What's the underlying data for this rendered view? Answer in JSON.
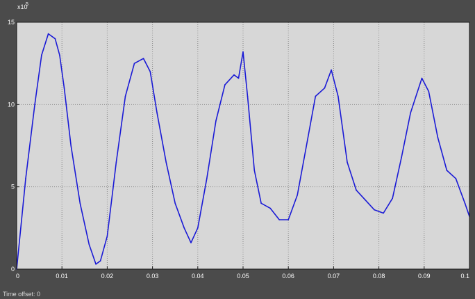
{
  "chart_data": {
    "type": "line",
    "title": "",
    "xlabel": "",
    "ylabel": "",
    "xlim": [
      0,
      0.1
    ],
    "ylim": [
      0,
      15
    ],
    "y_exponent_label": "x10",
    "y_exponent_power": "5",
    "grid": true,
    "x_ticks": [
      {
        "value": 0,
        "label": "0"
      },
      {
        "value": 0.01,
        "label": "0.01"
      },
      {
        "value": 0.02,
        "label": "0.02"
      },
      {
        "value": 0.03,
        "label": "0.03"
      },
      {
        "value": 0.04,
        "label": "0.04"
      },
      {
        "value": 0.05,
        "label": "0.05"
      },
      {
        "value": 0.06,
        "label": "0.06"
      },
      {
        "value": 0.07,
        "label": "0.07"
      },
      {
        "value": 0.08,
        "label": "0.08"
      },
      {
        "value": 0.09,
        "label": "0.09"
      },
      {
        "value": 0.1,
        "label": "0.1"
      }
    ],
    "y_ticks": [
      {
        "value": 0,
        "label": "0"
      },
      {
        "value": 5,
        "label": "5"
      },
      {
        "value": 10,
        "label": "10"
      },
      {
        "value": 15,
        "label": "15"
      }
    ],
    "series": [
      {
        "color": "#1a1ad6",
        "x": [
          0,
          0.002,
          0.004,
          0.0055,
          0.007,
          0.0085,
          0.0095,
          0.0105,
          0.012,
          0.014,
          0.016,
          0.0175,
          0.0185,
          0.02,
          0.022,
          0.024,
          0.026,
          0.028,
          0.0295,
          0.031,
          0.033,
          0.035,
          0.037,
          0.0385,
          0.04,
          0.042,
          0.044,
          0.046,
          0.048,
          0.049,
          0.05,
          0.051,
          0.0525,
          0.054,
          0.056,
          0.058,
          0.06,
          0.062,
          0.064,
          0.066,
          0.068,
          0.0695,
          0.071,
          0.073,
          0.075,
          0.077,
          0.079,
          0.081,
          0.083,
          0.085,
          0.087,
          0.0895,
          0.091,
          0.093,
          0.095,
          0.097,
          0.099,
          0.1
        ],
        "y": [
          0,
          5.5,
          10,
          13,
          14.3,
          14,
          13,
          11,
          7.5,
          4,
          1.5,
          0.3,
          0.5,
          2,
          6.5,
          10.5,
          12.5,
          12.8,
          12,
          9.5,
          6.5,
          4,
          2.5,
          1.6,
          2.5,
          5.5,
          9,
          11.2,
          11.8,
          11.6,
          13.2,
          10.5,
          6,
          4,
          3.7,
          3,
          3,
          4.5,
          7.5,
          10.5,
          11,
          12.1,
          10.5,
          6.5,
          4.8,
          4.2,
          3.6,
          3.4,
          4.3,
          6.8,
          9.5,
          11.6,
          10.8,
          8,
          6,
          5.5,
          4,
          3.2
        ]
      }
    ]
  },
  "status_text": "Time offset: 0"
}
